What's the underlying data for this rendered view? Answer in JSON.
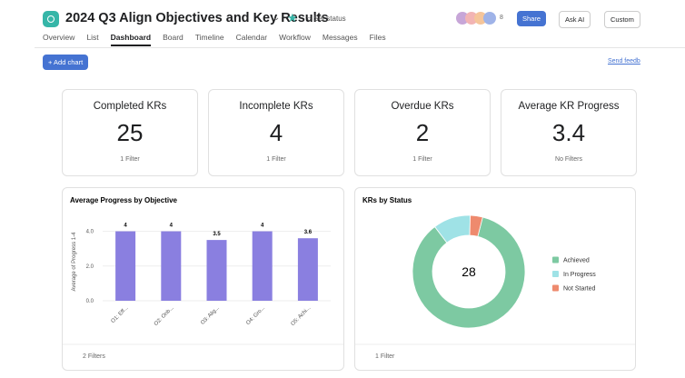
{
  "header": {
    "title": "2024 Q3 Align Objectives and Key Results",
    "status": "Set status",
    "member_count": "8",
    "share": "Share",
    "ask_ai": "Ask AI",
    "customize": "Custom"
  },
  "tabs": [
    "Overview",
    "List",
    "Dashboard",
    "Board",
    "Timeline",
    "Calendar",
    "Workflow",
    "Messages",
    "Files"
  ],
  "toolbar": {
    "add_chart": "+ Add chart",
    "send_feedback": "Send feedb"
  },
  "cards": [
    {
      "title": "Completed KRs",
      "value": "25",
      "filter": "1 Filter"
    },
    {
      "title": "Incomplete KRs",
      "value": "4",
      "filter": "1 Filter"
    },
    {
      "title": "Overdue KRs",
      "value": "2",
      "filter": "1 Filter"
    },
    {
      "title": "Average KR Progress",
      "value": "3.4",
      "filter": "No Filters"
    }
  ],
  "charts": [
    {
      "type": "bar",
      "title": "Average Progress by Objective",
      "y_label": "Average of Progress 1-4",
      "categories": [
        "O1: Eff...",
        "O2: Onb...",
        "O3: Alig...",
        "O4: Gro...",
        "O5: Achi..."
      ],
      "values": [
        4,
        4,
        3.5,
        4,
        3.6
      ],
      "color": "#8a7fe0",
      "ylim": [
        0,
        4.5
      ],
      "yticks": [
        {
          "value": 0,
          "label": "0.0"
        },
        {
          "value": 2,
          "label": "2.0"
        },
        {
          "value": 4,
          "label": "4.0"
        }
      ],
      "grid": true,
      "filter": "2 Filters"
    },
    {
      "type": "donut",
      "title": "KRs by Status",
      "total": 28,
      "categories": [
        "Achieved",
        "In Progress",
        "Not Started"
      ],
      "values": [
        24,
        3,
        1
      ],
      "colors": [
        "#7dc9a2",
        "#9fe2e6",
        "#ee8a6e"
      ],
      "filter": "1 Filter"
    }
  ]
}
